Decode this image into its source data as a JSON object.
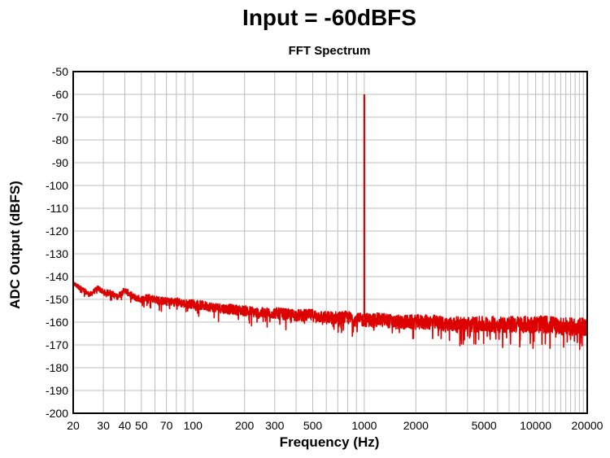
{
  "chart_data": {
    "type": "line",
    "title": "Input = -60dBFS",
    "subtitle": "FFT Spectrum",
    "xlabel": "Frequency (Hz)",
    "ylabel": "ADC Output (dBFS)",
    "x_scale": "log",
    "xlim": [
      20,
      20000
    ],
    "ylim": [
      -200,
      -50
    ],
    "x_ticks": [
      20,
      30,
      40,
      50,
      70,
      100,
      200,
      300,
      500,
      1000,
      2000,
      5000,
      10000,
      20000
    ],
    "x_tick_labels": [
      "20",
      "30",
      "40",
      "50",
      "70",
      "100",
      "200",
      "300",
      "500",
      "1000",
      "2000",
      "5000",
      "10000",
      "20000"
    ],
    "y_ticks": [
      -50,
      -60,
      -70,
      -80,
      -90,
      -100,
      -110,
      -120,
      -130,
      -140,
      -150,
      -160,
      -170,
      -180,
      -190,
      -200
    ],
    "y_tick_labels": [
      "-50",
      "-60",
      "-70",
      "-80",
      "-90",
      "-100",
      "-110",
      "-120",
      "-130",
      "-140",
      "-150",
      "-160",
      "-170",
      "-180",
      "-190",
      "-200"
    ],
    "grid": true,
    "line_color": "#dd0000",
    "series": [
      {
        "x": [
          20,
          22,
          25,
          28,
          30,
          33,
          36,
          40,
          45,
          50,
          55,
          60,
          70,
          80,
          90,
          100,
          120,
          150,
          200,
          250,
          300,
          400,
          500,
          600,
          700,
          800,
          900,
          980,
          1000,
          1020,
          1100,
          1300,
          1500,
          2000,
          2500,
          3000,
          4000,
          5000,
          6000,
          7000,
          8000,
          10000,
          12000,
          15000,
          20000
        ],
        "y": [
          -143,
          -145,
          -148,
          -145,
          -147,
          -147,
          -149,
          -146,
          -149,
          -150,
          -149,
          -150,
          -151,
          -151,
          -152,
          -152,
          -153,
          -154,
          -155,
          -156,
          -156,
          -157,
          -157,
          -158,
          -158,
          -158,
          -159,
          -159,
          -60,
          -159,
          -159,
          -159,
          -160,
          -160,
          -160,
          -161,
          -161,
          -161,
          -161,
          -161,
          -161,
          -161,
          -161,
          -162,
          -162
        ]
      }
    ],
    "noise_band_db": [
      {
        "x": 20,
        "band": 2
      },
      {
        "x": 100,
        "band": 4
      },
      {
        "x": 1000,
        "band": 6
      },
      {
        "x": 20000,
        "band": 8
      }
    ]
  }
}
